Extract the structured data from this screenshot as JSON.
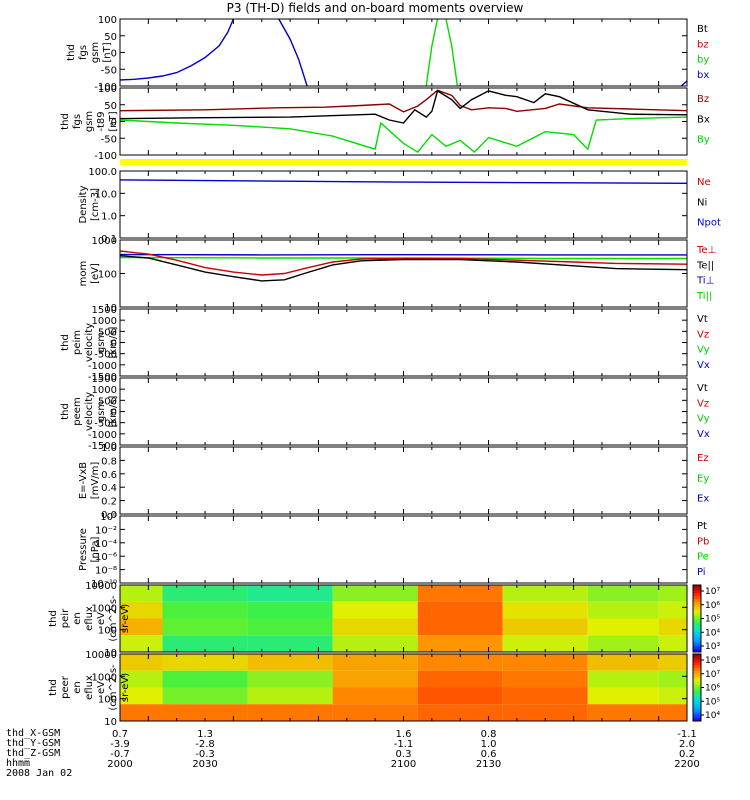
{
  "title": "P3 (TH-D) fields and on-board moments overview",
  "date_label": "2008 Jan 02",
  "colors": {
    "black": "#000000",
    "red": "#cc0000",
    "green": "#00ee00",
    "blue": "#0000cc",
    "yellow": "#ffff00",
    "darkred": "#8b0000"
  },
  "ephemeris": {
    "labels": [
      "thd_X-GSM",
      "thd_Y-GSM",
      "thd_Z-GSM",
      "hhmm"
    ],
    "columns": [
      {
        "x": "0.7",
        "y": "-3.9",
        "z": "-0.7",
        "t": "2000"
      },
      {
        "x": "1.3",
        "y": "-2.8",
        "z": "-0.3",
        "t": "2030"
      },
      {
        "x": "1.6",
        "y": "-1.1",
        "z": "0.3",
        "t": "2100"
      },
      {
        "x": "0.8",
        "y": "1.0",
        "z": "0.6",
        "t": "2130"
      },
      {
        "x": "-1.1",
        "y": "2.0",
        "z": "0.2",
        "t": "2200"
      }
    ]
  },
  "chart_data": [
    {
      "type": "line",
      "ylabel": [
        "thd",
        "fgs",
        "gsm",
        "[nT]"
      ],
      "yticks": [
        "100",
        "50",
        "0",
        "-50",
        "-100"
      ],
      "ylim": [
        -100,
        100
      ],
      "legend": [
        {
          "label": "Bt",
          "color": "#000000"
        },
        {
          "label": "bz",
          "color": "#cc0000"
        },
        {
          "label": "by",
          "color": "#00cc00"
        },
        {
          "label": "bx",
          "color": "#0000cc"
        }
      ],
      "series": [
        {
          "color": "#0000cc",
          "points": [
            [
              2000,
              -82
            ],
            [
              2005,
              -80
            ],
            [
              2010,
              -76
            ],
            [
              2015,
              -70
            ],
            [
              2020,
              -60
            ],
            [
              2025,
              -40
            ],
            [
              2030,
              -15
            ],
            [
              2035,
              20
            ],
            [
              2038,
              60
            ],
            [
              2040,
              100
            ]
          ]
        },
        {
          "color": "#0000cc",
          "points": [
            [
              2056,
              100
            ],
            [
              2060,
              40
            ],
            [
              2063,
              -20
            ],
            [
              2066,
              -100
            ]
          ]
        },
        {
          "color": "#00dd00",
          "points": [
            [
              2108,
              -100
            ],
            [
              2110,
              20
            ],
            [
              2112,
              100
            ]
          ]
        },
        {
          "color": "#00dd00",
          "points": [
            [
              2115,
              100
            ],
            [
              2117,
              20
            ],
            [
              2119,
              -100
            ]
          ]
        },
        {
          "color": "#0000cc",
          "points": [
            [
              2198,
              -100
            ],
            [
              2200,
              -85
            ]
          ]
        }
      ]
    },
    {
      "type": "line",
      "ylabel": [
        "thd",
        "fgs",
        "gsm",
        "-t89",
        "[nT]"
      ],
      "yticks": [
        "100",
        "50",
        "0",
        "-50",
        "-100"
      ],
      "ylim": [
        -130,
        100
      ],
      "legend": [
        {
          "label": "Bz",
          "color": "#8b0000"
        },
        {
          "label": "Bx",
          "color": "#000000"
        },
        {
          "label": "By",
          "color": "#00cc00"
        }
      ],
      "series": [
        {
          "color": "#8b0000",
          "points": [
            [
              2000,
              22
            ],
            [
              2030,
              25
            ],
            [
              2055,
              32
            ],
            [
              2072,
              34
            ],
            [
              2085,
              40
            ],
            [
              2095,
              45
            ],
            [
              2100,
              18
            ],
            [
              2105,
              38
            ],
            [
              2108,
              60
            ],
            [
              2112,
              92
            ],
            [
              2117,
              75
            ],
            [
              2120,
              40
            ],
            [
              2124,
              25
            ],
            [
              2130,
              32
            ],
            [
              2136,
              30
            ],
            [
              2140,
              20
            ],
            [
              2150,
              30
            ],
            [
              2155,
              45
            ],
            [
              2165,
              32
            ],
            [
              2180,
              28
            ],
            [
              2200,
              22
            ]
          ]
        },
        {
          "color": "#000000",
          "points": [
            [
              2000,
              -5
            ],
            [
              2030,
              -2
            ],
            [
              2060,
              0
            ],
            [
              2090,
              10
            ],
            [
              2095,
              -10
            ],
            [
              2100,
              -20
            ],
            [
              2104,
              25
            ],
            [
              2108,
              0
            ],
            [
              2110,
              20
            ],
            [
              2112,
              90
            ],
            [
              2117,
              60
            ],
            [
              2120,
              30
            ],
            [
              2124,
              60
            ],
            [
              2130,
              90
            ],
            [
              2136,
              75
            ],
            [
              2140,
              70
            ],
            [
              2146,
              50
            ],
            [
              2150,
              80
            ],
            [
              2155,
              70
            ],
            [
              2165,
              25
            ],
            [
              2180,
              10
            ],
            [
              2200,
              8
            ]
          ]
        },
        {
          "color": "#00dd00",
          "points": [
            [
              2000,
              -10
            ],
            [
              2020,
              -20
            ],
            [
              2040,
              -28
            ],
            [
              2060,
              -40
            ],
            [
              2075,
              -65
            ],
            [
              2090,
              -110
            ],
            [
              2092,
              -20
            ],
            [
              2100,
              -90
            ],
            [
              2105,
              -120
            ],
            [
              2110,
              -60
            ],
            [
              2115,
              -100
            ],
            [
              2120,
              -80
            ],
            [
              2125,
              -120
            ],
            [
              2130,
              -70
            ],
            [
              2140,
              -100
            ],
            [
              2150,
              -50
            ],
            [
              2160,
              -60
            ],
            [
              2165,
              -110
            ],
            [
              2168,
              -10
            ],
            [
              2180,
              -5
            ],
            [
              2200,
              0
            ]
          ]
        }
      ]
    },
    {
      "type": "line",
      "ylabel": [
        "Density",
        "[cm-3]"
      ],
      "scale": "log",
      "yticks": [
        "100.0",
        "10.0",
        "1.0",
        "0.1"
      ],
      "ylim": [
        0.1,
        100
      ],
      "legend": [
        {
          "label": "Ne",
          "color": "#cc0000"
        },
        {
          "label": "Ni",
          "color": "#000000"
        },
        {
          "label": "Npot",
          "color": "#0000cc"
        }
      ],
      "series": [
        {
          "color": "#0000cc",
          "points": [
            [
              2000,
              40
            ],
            [
              2100,
              32
            ],
            [
              2200,
              28
            ]
          ]
        }
      ]
    },
    {
      "type": "line",
      "ylabel": [
        "mom",
        "[eV]"
      ],
      "scale": "log",
      "yticks": [
        "1000",
        "100",
        "10"
      ],
      "ylim": [
        10,
        1000
      ],
      "legend": [
        {
          "label": "Te⊥",
          "color": "#cc0000"
        },
        {
          "label": "Te||",
          "color": "#000000"
        },
        {
          "label": "Ti⊥",
          "color": "#0000cc"
        },
        {
          "label": "Ti||",
          "color": "#00cc00"
        }
      ],
      "series": [
        {
          "color": "#0000cc",
          "points": [
            [
              2000,
              370
            ],
            [
              2050,
              360
            ],
            [
              2100,
              365
            ],
            [
              2150,
              360
            ],
            [
              2200,
              360
            ]
          ]
        },
        {
          "color": "#00dd00",
          "points": [
            [
              2000,
              300
            ],
            [
              2050,
              290
            ],
            [
              2100,
              290
            ],
            [
              2150,
              280
            ],
            [
              2200,
              280
            ]
          ]
        },
        {
          "color": "#cc0000",
          "points": [
            [
              2000,
              470
            ],
            [
              2010,
              380
            ],
            [
              2020,
              250
            ],
            [
              2030,
              150
            ],
            [
              2040,
              110
            ],
            [
              2050,
              90
            ],
            [
              2058,
              100
            ],
            [
              2065,
              140
            ],
            [
              2075,
              220
            ],
            [
              2085,
              270
            ],
            [
              2100,
              280
            ],
            [
              2120,
              280
            ],
            [
              2140,
              250
            ],
            [
              2160,
              220
            ],
            [
              2175,
              200
            ],
            [
              2200,
              190
            ]
          ]
        },
        {
          "color": "#000000",
          "points": [
            [
              2000,
              340
            ],
            [
              2010,
              290
            ],
            [
              2020,
              180
            ],
            [
              2030,
              110
            ],
            [
              2040,
              80
            ],
            [
              2050,
              60
            ],
            [
              2058,
              65
            ],
            [
              2065,
              100
            ],
            [
              2075,
              180
            ],
            [
              2085,
              240
            ],
            [
              2100,
              260
            ],
            [
              2120,
              260
            ],
            [
              2140,
              220
            ],
            [
              2160,
              170
            ],
            [
              2175,
              140
            ],
            [
              2200,
              130
            ]
          ]
        }
      ]
    },
    {
      "type": "line",
      "ylabel": [
        "thd",
        "peim",
        "velocity",
        "gsm",
        "[km/s]"
      ],
      "yticks": [
        "1500",
        "1000",
        "500",
        "0",
        "-500",
        "-1000",
        "-1500"
      ],
      "ylim": [
        -1500,
        1500
      ],
      "legend": [
        {
          "label": "Vt",
          "color": "#000000"
        },
        {
          "label": "Vz",
          "color": "#cc0000"
        },
        {
          "label": "Vy",
          "color": "#00cc00"
        },
        {
          "label": "Vx",
          "color": "#0000cc"
        }
      ],
      "series": []
    },
    {
      "type": "line",
      "ylabel": [
        "thd",
        "peem",
        "velocity",
        "gsm",
        "[km/s]"
      ],
      "yticks": [
        "1500",
        "1000",
        "500",
        "0",
        "-500",
        "-1000",
        "-1500"
      ],
      "ylim": [
        -1500,
        1500
      ],
      "legend": [
        {
          "label": "Vt",
          "color": "#000000"
        },
        {
          "label": "Vz",
          "color": "#cc0000"
        },
        {
          "label": "Vy",
          "color": "#00cc00"
        },
        {
          "label": "Vx",
          "color": "#0000cc"
        }
      ],
      "series": []
    },
    {
      "type": "line",
      "ylabel": [
        "E=-VxB",
        "[mV/m]"
      ],
      "yticks": [
        "1.0",
        "0.8",
        "0.6",
        "0.4",
        "0.2",
        "0.0"
      ],
      "ylim": [
        0,
        1
      ],
      "legend": [
        {
          "label": "Ez",
          "color": "#cc0000"
        },
        {
          "label": "Ey",
          "color": "#00cc00"
        },
        {
          "label": "Ex",
          "color": "#0000cc"
        }
      ],
      "series": []
    },
    {
      "type": "line",
      "ylabel": [
        "Pressure",
        "[nPa]"
      ],
      "scale": "log",
      "yticks": [
        "10⁰",
        "10⁻²",
        "10⁻⁴",
        "10⁻⁶",
        "10⁻⁸",
        "10⁻¹⁰"
      ],
      "ylim": [
        1e-10,
        1
      ],
      "legend": [
        {
          "label": "Pt",
          "color": "#000000"
        },
        {
          "label": "Pb",
          "color": "#cc0000"
        },
        {
          "label": "Pe",
          "color": "#00cc00"
        },
        {
          "label": "Pi",
          "color": "#0000cc"
        }
      ],
      "series": []
    },
    {
      "type": "heatmap",
      "ylabel": [
        "thd",
        "peir",
        "en",
        "eflux",
        "eV",
        "(cm^2-s-",
        "sr-eV)"
      ],
      "scale": "log",
      "yticks": [
        "10000",
        "1000",
        "100",
        "10"
      ],
      "ylim": [
        10,
        20000
      ],
      "colorbar": [
        "10⁷",
        "10⁶",
        "10⁵",
        "10⁴",
        "10³"
      ],
      "x": [
        2000,
        2030,
        2060,
        2090,
        2120,
        2150,
        2180,
        2200
      ],
      "y": [
        10000,
        1000,
        100,
        10
      ],
      "values": [
        [
          5.8,
          5.0,
          4.9,
          5.6,
          6.9,
          5.8,
          5.6,
          5.7
        ],
        [
          6.2,
          5.3,
          5.2,
          6.0,
          7.0,
          6.1,
          5.8,
          5.9
        ],
        [
          6.5,
          5.4,
          5.3,
          6.2,
          7.0,
          6.3,
          6.0,
          6.2
        ],
        [
          5.9,
          5.0,
          5.0,
          5.8,
          6.7,
          5.9,
          5.7,
          5.9
        ]
      ]
    },
    {
      "type": "heatmap",
      "ylabel": [
        "thd",
        "peer",
        "en",
        "eflux",
        "eV",
        "(cm^2-s-",
        "sr-eV)"
      ],
      "scale": "log",
      "yticks": [
        "10000",
        "1000",
        "100",
        "10"
      ],
      "ylim": [
        10,
        20000
      ],
      "colorbar": [
        "10⁸",
        "10⁷",
        "10⁶",
        "10⁵",
        "10⁴"
      ],
      "x": [
        2000,
        2030,
        2060,
        2090,
        2120,
        2150,
        2180,
        2200
      ],
      "y": [
        10000,
        1000,
        100,
        10
      ],
      "values": [
        [
          6.3,
          6.2,
          6.4,
          6.6,
          6.8,
          6.8,
          6.4,
          6.3
        ],
        [
          5.8,
          5.3,
          5.6,
          6.6,
          7.0,
          6.9,
          5.8,
          5.7
        ],
        [
          6.0,
          5.5,
          5.8,
          6.8,
          7.1,
          7.0,
          6.0,
          5.9
        ],
        [
          6.9,
          6.9,
          6.9,
          6.9,
          7.0,
          7.0,
          6.9,
          6.9
        ]
      ]
    }
  ]
}
